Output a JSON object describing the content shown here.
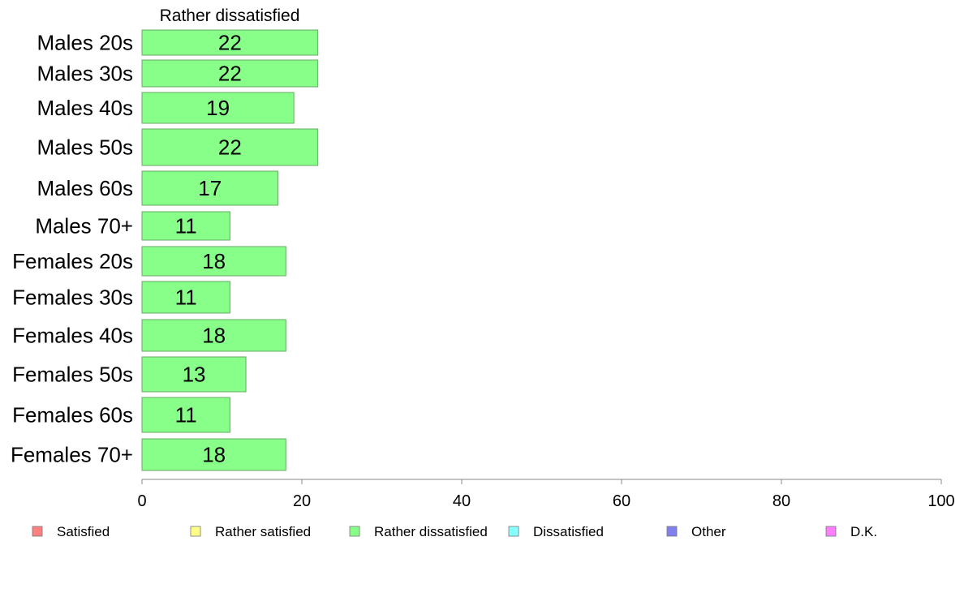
{
  "chart_data": {
    "type": "bar",
    "orientation": "horizontal",
    "title": "Rather dissatisfied",
    "xlabel": "",
    "ylabel": "",
    "categories": [
      "Males 20s",
      "Males 30s",
      "Males 40s",
      "Males 50s",
      "Males 60s",
      "Males 70+",
      "Females 20s",
      "Females 30s",
      "Females 40s",
      "Females 50s",
      "Females 60s",
      "Females 70+"
    ],
    "values": [
      22,
      22,
      19,
      22,
      17,
      11,
      18,
      11,
      18,
      13,
      11,
      18
    ],
    "xlim": [
      0,
      100
    ],
    "xticks": [
      0,
      20,
      40,
      60,
      80,
      100
    ],
    "grid": false,
    "bar_color": "#88ff88",
    "bar_edge_color": "#66aa66",
    "legend": {
      "placement": "bottom",
      "entries": [
        {
          "name": "Satisfied",
          "color": "#ff8080"
        },
        {
          "name": "Rather satisfied",
          "color": "#ffff88"
        },
        {
          "name": "Rather dissatisfied",
          "color": "#88ff88"
        },
        {
          "name": "Dissatisfied",
          "color": "#88ffff"
        },
        {
          "name": "Other",
          "color": "#8080ee"
        },
        {
          "name": "D.K.",
          "color": "#ff80ff"
        }
      ]
    }
  }
}
